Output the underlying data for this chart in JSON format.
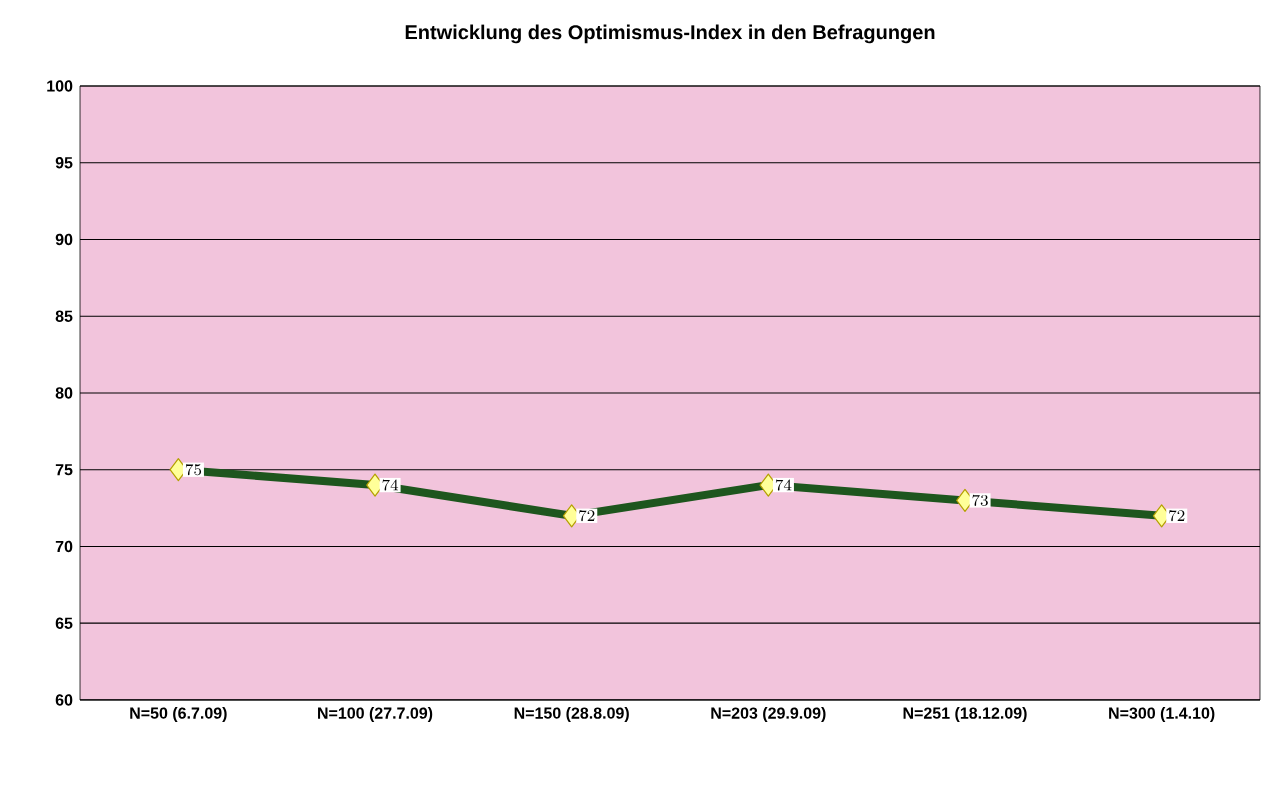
{
  "chart_data": {
    "type": "line",
    "title": "Entwicklung des Optimismus-Index in den Befragungen",
    "categories": [
      "N=50 (6.7.09)",
      "N=100 (27.7.09)",
      "N=150 (28.8.09)",
      "N=203 (29.9.09)",
      "N=251 (18.12.09)",
      "N=300 (1.4.10)"
    ],
    "series": [
      {
        "color": "#1e561e",
        "values": [
          75,
          74,
          72,
          74,
          73,
          72
        ]
      }
    ],
    "ylim": [
      60,
      100
    ],
    "yticks": [
      60,
      65,
      70,
      75,
      80,
      85,
      90,
      95,
      100
    ],
    "grid": "y",
    "marker": "diamond",
    "line_style": "solid",
    "data_labels": true
  }
}
